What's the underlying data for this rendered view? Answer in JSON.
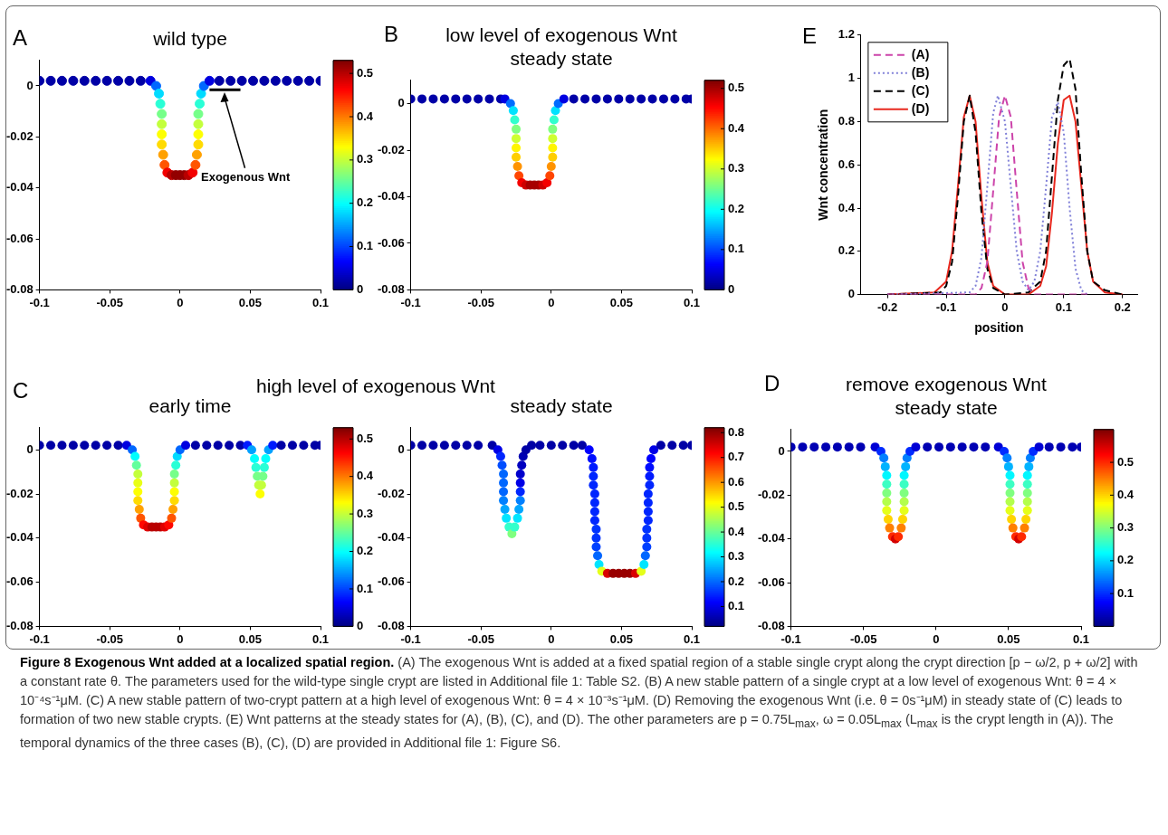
{
  "chart_data": [
    {
      "type": "scatter",
      "title": "wild type",
      "annotations": [
        "A",
        "Exogenous Wnt"
      ],
      "marker": "circle",
      "xlim": [
        -0.1,
        0.1
      ],
      "xticks": [
        -0.1,
        -0.05,
        0,
        0.05,
        0.1
      ],
      "ylim": [
        -0.08,
        0.01
      ],
      "yticks": [
        -0.08,
        -0.06,
        -0.04,
        -0.02,
        0
      ],
      "clim": [
        0,
        0.53
      ],
      "cticks": [
        0,
        0.1,
        0.2,
        0.3,
        0.4,
        0.5
      ],
      "series": [
        {
          "type": "scatter",
          "colors": [
            "#0000a6",
            "#0000a6",
            "#0000a6",
            "#0000a6",
            "#0000a6",
            "#0000a6",
            "#0000a6",
            "#0000a6",
            "#0000a6",
            "#0000a6",
            "#0000e0",
            "#0068ff",
            "#00dbff",
            "#29ffd6",
            "#76ff89",
            "#c3ff3c",
            "#ffff02",
            "#ffdb00",
            "#ffa100",
            "#ff5400",
            "#f30000",
            "#b90000",
            "#930000",
            "#930000",
            "#930000",
            "#b90000",
            "#f30000",
            "#ff5400",
            "#ffa100",
            "#ffdb00",
            "#ffff02",
            "#c3ff3c",
            "#76ff89",
            "#29ffd6",
            "#00dbff",
            "#0068ff",
            "#0000e0",
            "#0000a6",
            "#0000a6",
            "#0000a6",
            "#0000a6",
            "#0000a6",
            "#0000a6",
            "#0000a6",
            "#0000a6",
            "#0000a6",
            "#0000a6"
          ],
          "x": [
            -0.1,
            -0.092,
            -0.084,
            -0.076,
            -0.068,
            -0.06,
            -0.052,
            -0.044,
            -0.036,
            -0.028,
            -0.021,
            -0.017,
            -0.015,
            -0.014,
            -0.013,
            -0.013,
            -0.013,
            -0.013,
            -0.012,
            -0.011,
            -0.009,
            -0.006,
            -0.003,
            0,
            0.003,
            0.006,
            0.009,
            0.011,
            0.012,
            0.013,
            0.013,
            0.013,
            0.013,
            0.014,
            0.015,
            0.017,
            0.021,
            0.028,
            0.036,
            0.044,
            0.052,
            0.06,
            0.068,
            0.076,
            0.084,
            0.092,
            0.1
          ],
          "values": [
            0.002,
            0.002,
            0.002,
            0.002,
            0.002,
            0.002,
            0.002,
            0.002,
            0.002,
            0.002,
            0.002,
            0,
            -0.003,
            -0.007,
            -0.011,
            -0.015,
            -0.019,
            -0.023,
            -0.027,
            -0.031,
            -0.034,
            -0.035,
            -0.035,
            -0.035,
            -0.035,
            -0.035,
            -0.034,
            -0.031,
            -0.027,
            -0.023,
            -0.019,
            -0.015,
            -0.011,
            -0.007,
            -0.003,
            0,
            0.002,
            0.002,
            0.002,
            0.002,
            0.002,
            0.002,
            0.002,
            0.002,
            0.002,
            0.002,
            0.002
          ],
          "cvalues": [
            0.02,
            0.02,
            0.02,
            0.02,
            0.02,
            0.02,
            0.02,
            0.02,
            0.02,
            0.02,
            0.05,
            0.12,
            0.18,
            0.22,
            0.26,
            0.3,
            0.33,
            0.35,
            0.38,
            0.42,
            0.47,
            0.5,
            0.52,
            0.52,
            0.52,
            0.5,
            0.47,
            0.42,
            0.38,
            0.35,
            0.33,
            0.3,
            0.26,
            0.22,
            0.18,
            0.12,
            0.05,
            0.02,
            0.02,
            0.02,
            0.02,
            0.02,
            0.02,
            0.02,
            0.02,
            0.02,
            0.02
          ]
        },
        {
          "type": "line",
          "color": "#000000",
          "marker": "none",
          "x": [
            0.021,
            0.043
          ],
          "values": [
            -0.0015,
            -0.0015
          ]
        }
      ]
    },
    {
      "type": "scatter",
      "title": "low level of exogenous Wnt",
      "subtitle": "steady state",
      "annotations": [
        "B"
      ],
      "marker": "circle",
      "xlim": [
        -0.1,
        0.1
      ],
      "xticks": [
        -0.1,
        -0.05,
        0,
        0.05,
        0.1
      ],
      "ylim": [
        -0.08,
        0.01
      ],
      "yticks": [
        -0.08,
        -0.06,
        -0.04,
        -0.02,
        0
      ],
      "clim": [
        0,
        0.52
      ],
      "cticks": [
        0,
        0.1,
        0.2,
        0.3,
        0.4,
        0.5
      ],
      "x": [
        -0.1,
        -0.092,
        -0.084,
        -0.076,
        -0.068,
        -0.06,
        -0.052,
        -0.044,
        -0.036,
        -0.033,
        -0.029,
        -0.027,
        -0.026,
        -0.025,
        -0.025,
        -0.025,
        -0.025,
        -0.024,
        -0.023,
        -0.021,
        -0.018,
        -0.015,
        -0.012,
        -0.009,
        -0.006,
        -0.003,
        -0.001,
        0,
        0.001,
        0.001,
        0.001,
        0.001,
        0.002,
        0.003,
        0.005,
        0.009,
        0.016,
        0.024,
        0.032,
        0.04,
        0.048,
        0.056,
        0.064,
        0.072,
        0.08,
        0.088,
        0.096,
        0.1
      ],
      "values": [
        0.002,
        0.002,
        0.002,
        0.002,
        0.002,
        0.002,
        0.002,
        0.002,
        0.002,
        0.002,
        0,
        -0.003,
        -0.007,
        -0.011,
        -0.015,
        -0.019,
        -0.023,
        -0.027,
        -0.031,
        -0.034,
        -0.035,
        -0.035,
        -0.035,
        -0.035,
        -0.035,
        -0.034,
        -0.031,
        -0.027,
        -0.023,
        -0.019,
        -0.015,
        -0.011,
        -0.007,
        -0.003,
        0,
        0.002,
        0.002,
        0.002,
        0.002,
        0.002,
        0.002,
        0.002,
        0.002,
        0.002,
        0.002,
        0.002,
        0.002,
        0.002
      ],
      "cvalues": [
        0.02,
        0.02,
        0.02,
        0.02,
        0.02,
        0.02,
        0.02,
        0.02,
        0.02,
        0.05,
        0.12,
        0.18,
        0.22,
        0.26,
        0.3,
        0.33,
        0.35,
        0.38,
        0.42,
        0.46,
        0.48,
        0.5,
        0.5,
        0.5,
        0.48,
        0.46,
        0.42,
        0.38,
        0.35,
        0.33,
        0.3,
        0.26,
        0.22,
        0.18,
        0.12,
        0.05,
        0.02,
        0.02,
        0.02,
        0.02,
        0.02,
        0.02,
        0.02,
        0.02,
        0.02,
        0.02,
        0.02,
        0.02
      ]
    },
    {
      "type": "line",
      "annotations": [
        "E"
      ],
      "xlabel": "position",
      "ylabel": "Wnt concentration",
      "legend": "top left",
      "marker": "none",
      "xlim": [
        -0.245,
        0.225
      ],
      "xticks": [
        -0.2,
        -0.1,
        0,
        0.1,
        0.2
      ],
      "ylim": [
        0,
        1.2
      ],
      "yticks": [
        0,
        0.2,
        0.4,
        0.6,
        0.8,
        1,
        1.2
      ],
      "series": [
        {
          "name": "(A)",
          "color": "#cc44aa",
          "line_style": "dashed",
          "x": [
            -0.2,
            -0.05,
            -0.04,
            -0.03,
            -0.02,
            -0.01,
            0,
            0.01,
            0.02,
            0.03,
            0.04,
            0.05,
            0.14
          ],
          "values": [
            0,
            0,
            0.03,
            0.15,
            0.48,
            0.82,
            0.92,
            0.82,
            0.48,
            0.15,
            0.03,
            0,
            0
          ]
        },
        {
          "name": "(B)",
          "color": "#8080d8",
          "line_style": "dotted",
          "x": [
            -0.2,
            -0.06,
            -0.05,
            -0.04,
            -0.03,
            -0.02,
            -0.012,
            0,
            0.01,
            0.02,
            0.03,
            0.04,
            0.05,
            0.06,
            0.07,
            0.08,
            0.09,
            0.1,
            0.11,
            0.12,
            0.13,
            0.14
          ],
          "values": [
            0,
            0.01,
            0.04,
            0.17,
            0.5,
            0.84,
            0.92,
            0.8,
            0.5,
            0.2,
            0.06,
            0.02,
            0.06,
            0.2,
            0.5,
            0.82,
            0.89,
            0.75,
            0.4,
            0.12,
            0.02,
            0
          ]
        },
        {
          "name": "(C)",
          "color": "#000000",
          "line_style": "dashed",
          "x": [
            -0.2,
            -0.11,
            -0.1,
            -0.09,
            -0.08,
            -0.07,
            -0.06,
            -0.05,
            -0.04,
            -0.03,
            -0.02,
            0,
            0.04,
            0.06,
            0.07,
            0.08,
            0.09,
            0.1,
            0.11,
            0.12,
            0.13,
            0.14,
            0.15,
            0.17,
            0.2
          ],
          "values": [
            0,
            0.01,
            0.04,
            0.15,
            0.45,
            0.8,
            0.92,
            0.75,
            0.38,
            0.12,
            0.03,
            0,
            0.01,
            0.06,
            0.2,
            0.55,
            0.9,
            1.06,
            1.09,
            0.95,
            0.55,
            0.2,
            0.06,
            0.02,
            0
          ]
        },
        {
          "name": "(D)",
          "color": "#e8281e",
          "line_style": "solid",
          "x": [
            -0.2,
            -0.12,
            -0.1,
            -0.09,
            -0.08,
            -0.07,
            -0.06,
            -0.05,
            -0.04,
            -0.03,
            -0.02,
            0,
            0.04,
            0.06,
            0.07,
            0.08,
            0.09,
            0.1,
            0.11,
            0.12,
            0.13,
            0.14,
            0.15,
            0.17,
            0.2
          ],
          "values": [
            0,
            0.01,
            0.06,
            0.2,
            0.5,
            0.82,
            0.92,
            0.8,
            0.45,
            0.15,
            0.04,
            0,
            0,
            0.04,
            0.13,
            0.38,
            0.7,
            0.9,
            0.92,
            0.8,
            0.5,
            0.2,
            0.06,
            0.01,
            0
          ]
        }
      ]
    },
    {
      "type": "scatter",
      "title": "high level of exogenous Wnt",
      "subtitle": "early time",
      "annotations": [
        "C"
      ],
      "marker": "circle",
      "xlim": [
        -0.1,
        0.1
      ],
      "xticks": [
        -0.1,
        -0.05,
        0,
        0.05,
        0.1
      ],
      "ylim": [
        -0.08,
        0.01
      ],
      "yticks": [
        -0.08,
        -0.06,
        -0.04,
        -0.02,
        0
      ],
      "clim": [
        0,
        0.53
      ],
      "cticks": [
        0,
        0.1,
        0.2,
        0.3,
        0.4,
        0.5
      ],
      "x": [
        -0.1,
        -0.092,
        -0.084,
        -0.076,
        -0.068,
        -0.06,
        -0.052,
        -0.044,
        -0.038,
        -0.034,
        -0.032,
        -0.031,
        -0.03,
        -0.03,
        -0.03,
        -0.03,
        -0.029,
        -0.028,
        -0.026,
        -0.023,
        -0.02,
        -0.017,
        -0.014,
        -0.011,
        -0.008,
        -0.006,
        -0.005,
        -0.004,
        -0.004,
        -0.004,
        -0.004,
        -0.003,
        -0.002,
        0,
        0.004,
        0.011,
        0.019,
        0.027,
        0.035,
        0.043,
        0.048,
        0.051,
        0.053,
        0.054,
        0.055,
        0.056,
        0.057,
        0.058,
        0.059,
        0.06,
        0.061,
        0.063,
        0.066,
        0.072,
        0.08,
        0.088,
        0.096,
        0.1
      ],
      "values": [
        0.002,
        0.002,
        0.002,
        0.002,
        0.002,
        0.002,
        0.002,
        0.002,
        0.002,
        0,
        -0.003,
        -0.007,
        -0.011,
        -0.015,
        -0.019,
        -0.023,
        -0.027,
        -0.031,
        -0.034,
        -0.035,
        -0.035,
        -0.035,
        -0.035,
        -0.035,
        -0.034,
        -0.031,
        -0.027,
        -0.023,
        -0.019,
        -0.015,
        -0.011,
        -0.007,
        -0.003,
        0,
        0.002,
        0.002,
        0.002,
        0.002,
        0.002,
        0.002,
        0.002,
        0,
        -0.004,
        -0.008,
        -0.012,
        -0.016,
        -0.02,
        -0.016,
        -0.012,
        -0.008,
        -0.004,
        0,
        0.002,
        0.002,
        0.002,
        0.002,
        0.002,
        0.002
      ],
      "cvalues": [
        0.02,
        0.02,
        0.02,
        0.02,
        0.02,
        0.02,
        0.02,
        0.02,
        0.05,
        0.12,
        0.2,
        0.25,
        0.3,
        0.32,
        0.33,
        0.35,
        0.38,
        0.42,
        0.46,
        0.48,
        0.5,
        0.5,
        0.5,
        0.48,
        0.46,
        0.42,
        0.38,
        0.35,
        0.33,
        0.3,
        0.26,
        0.22,
        0.18,
        0.12,
        0.05,
        0.02,
        0.02,
        0.02,
        0.02,
        0.02,
        0.08,
        0.15,
        0.2,
        0.22,
        0.26,
        0.3,
        0.33,
        0.3,
        0.26,
        0.22,
        0.2,
        0.15,
        0.08,
        0.02,
        0.02,
        0.02,
        0.02,
        0.02
      ]
    },
    {
      "type": "scatter",
      "title": "steady state",
      "marker": "circle",
      "xlim": [
        -0.1,
        0.1
      ],
      "xticks": [
        -0.1,
        -0.05,
        0,
        0.05,
        0.1
      ],
      "ylim": [
        -0.08,
        0.01
      ],
      "yticks": [
        -0.08,
        -0.06,
        -0.04,
        -0.02,
        0
      ],
      "clim": [
        0.02,
        0.82
      ],
      "cticks": [
        0.1,
        0.2,
        0.3,
        0.4,
        0.5,
        0.6,
        0.7,
        0.8
      ],
      "x": [
        -0.1,
        -0.092,
        -0.084,
        -0.076,
        -0.068,
        -0.06,
        -0.052,
        -0.042,
        -0.038,
        -0.036,
        -0.035,
        -0.034,
        -0.034,
        -0.034,
        -0.034,
        -0.033,
        -0.032,
        -0.03,
        -0.028,
        -0.026,
        -0.024,
        -0.023,
        -0.022,
        -0.022,
        -0.022,
        -0.022,
        -0.021,
        -0.02,
        -0.018,
        -0.014,
        -0.008,
        0,
        0.008,
        0.016,
        0.022,
        0.027,
        0.029,
        0.03,
        0.03,
        0.03,
        0.031,
        0.031,
        0.031,
        0.031,
        0.032,
        0.032,
        0.032,
        0.033,
        0.034,
        0.036,
        0.04,
        0.044,
        0.048,
        0.052,
        0.056,
        0.06,
        0.064,
        0.066,
        0.067,
        0.068,
        0.068,
        0.068,
        0.069,
        0.069,
        0.069,
        0.069,
        0.07,
        0.07,
        0.07,
        0.071,
        0.073,
        0.078,
        0.086,
        0.094,
        0.1
      ],
      "values": [
        0.002,
        0.002,
        0.002,
        0.002,
        0.002,
        0.002,
        0.002,
        0.002,
        0,
        -0.003,
        -0.007,
        -0.011,
        -0.015,
        -0.019,
        -0.023,
        -0.027,
        -0.031,
        -0.035,
        -0.038,
        -0.035,
        -0.031,
        -0.027,
        -0.023,
        -0.019,
        -0.015,
        -0.011,
        -0.007,
        -0.003,
        0,
        0.002,
        0.002,
        0.002,
        0.002,
        0.002,
        0.002,
        0,
        -0.004,
        -0.008,
        -0.012,
        -0.016,
        -0.02,
        -0.024,
        -0.028,
        -0.032,
        -0.036,
        -0.04,
        -0.044,
        -0.048,
        -0.052,
        -0.055,
        -0.056,
        -0.056,
        -0.056,
        -0.056,
        -0.056,
        -0.056,
        -0.055,
        -0.052,
        -0.048,
        -0.044,
        -0.04,
        -0.036,
        -0.032,
        -0.028,
        -0.024,
        -0.02,
        -0.016,
        -0.012,
        -0.008,
        -0.004,
        0,
        0.002,
        0.002,
        0.002,
        0.002
      ],
      "cvalues": [
        0.05,
        0.05,
        0.05,
        0.05,
        0.05,
        0.05,
        0.05,
        0.05,
        0.1,
        0.15,
        0.18,
        0.2,
        0.2,
        0.2,
        0.22,
        0.25,
        0.3,
        0.36,
        0.42,
        0.36,
        0.3,
        0.25,
        0.22,
        0.15,
        0.1,
        0.08,
        0.07,
        0.06,
        0.05,
        0.05,
        0.05,
        0.05,
        0.05,
        0.05,
        0.05,
        0.12,
        0.13,
        0.14,
        0.15,
        0.15,
        0.15,
        0.15,
        0.15,
        0.15,
        0.16,
        0.16,
        0.17,
        0.2,
        0.3,
        0.5,
        0.75,
        0.8,
        0.8,
        0.8,
        0.8,
        0.75,
        0.5,
        0.3,
        0.2,
        0.17,
        0.16,
        0.16,
        0.15,
        0.15,
        0.15,
        0.15,
        0.15,
        0.14,
        0.13,
        0.12,
        0.1,
        0.05,
        0.05,
        0.05,
        0.05
      ]
    },
    {
      "type": "scatter",
      "title": "remove exogenous Wnt",
      "subtitle": "steady state",
      "annotations": [
        "D",
        "Figure 8 Exogenous Wnt added at a localized spatial region.",
        "(A) The exogenous Wnt is added at a fixed spatial region of a stable single crypt along the crypt direction [p − ω/2, p + ω/2] with a constant rate θ. The parameters used for the wild-type single crypt are listed in Additional file 1: Table S2. (B) A new stable pattern of a single crypt at a low level of exogenous Wnt: θ = 4 × 10⁻⁴s⁻¹μM. (C) A new stable pattern of two-crypt pattern at a high level of exogenous Wnt: θ = 4 × 10⁻³s⁻¹μM. (D) Removing the exogenous Wnt (i.e. θ = 0s⁻¹μM) in steady state of (C) leads to formation of two new stable crypts. (E) Wnt patterns at the steady states for (A), (B), (C), and (D). The other parameters are p = 0.75L$_{max}$, ω = 0.05L$_{max}$ (L$_{max}$ is the crypt length in (A)). The temporal dynamics of the three cases (B), (C), (D) are provided in Additional file 1: Figure S6."
      ],
      "marker": "circle",
      "xlim": [
        -0.1,
        0.1
      ],
      "xticks": [
        -0.1,
        -0.05,
        0,
        0.05,
        0.1
      ],
      "ylim": [
        -0.08,
        0.01
      ],
      "yticks": [
        -0.08,
        -0.06,
        -0.04,
        -0.02,
        0
      ],
      "clim": [
        0,
        0.6
      ],
      "cticks": [
        0.1,
        0.2,
        0.3,
        0.4,
        0.5
      ],
      "x": [
        -0.1,
        -0.092,
        -0.084,
        -0.076,
        -0.068,
        -0.06,
        -0.052,
        -0.042,
        -0.038,
        -0.036,
        -0.035,
        -0.034,
        -0.034,
        -0.034,
        -0.034,
        -0.034,
        -0.033,
        -0.032,
        -0.03,
        -0.028,
        -0.026,
        -0.024,
        -0.023,
        -0.022,
        -0.022,
        -0.022,
        -0.022,
        -0.022,
        -0.021,
        -0.02,
        -0.018,
        -0.014,
        -0.006,
        0.002,
        0.01,
        0.018,
        0.026,
        0.034,
        0.043,
        0.047,
        0.049,
        0.05,
        0.051,
        0.051,
        0.051,
        0.051,
        0.051,
        0.052,
        0.053,
        0.055,
        0.057,
        0.059,
        0.061,
        0.062,
        0.063,
        0.063,
        0.063,
        0.063,
        0.063,
        0.064,
        0.065,
        0.067,
        0.071,
        0.078,
        0.086,
        0.094,
        0.1
      ],
      "values": [
        0.002,
        0.002,
        0.002,
        0.002,
        0.002,
        0.002,
        0.002,
        0.002,
        0,
        -0.003,
        -0.007,
        -0.011,
        -0.015,
        -0.019,
        -0.023,
        -0.027,
        -0.031,
        -0.035,
        -0.039,
        -0.04,
        -0.039,
        -0.035,
        -0.031,
        -0.027,
        -0.023,
        -0.019,
        -0.015,
        -0.011,
        -0.007,
        -0.003,
        0,
        0.002,
        0.002,
        0.002,
        0.002,
        0.002,
        0.002,
        0.002,
        0.002,
        0,
        -0.003,
        -0.007,
        -0.011,
        -0.015,
        -0.019,
        -0.023,
        -0.027,
        -0.031,
        -0.035,
        -0.039,
        -0.04,
        -0.039,
        -0.035,
        -0.031,
        -0.027,
        -0.023,
        -0.019,
        -0.015,
        -0.011,
        -0.007,
        -0.003,
        0,
        0.002,
        0.002,
        0.002,
        0.002,
        0.002
      ],
      "cvalues": [
        0.03,
        0.03,
        0.03,
        0.03,
        0.03,
        0.03,
        0.03,
        0.05,
        0.1,
        0.15,
        0.18,
        0.22,
        0.26,
        0.3,
        0.33,
        0.36,
        0.4,
        0.45,
        0.5,
        0.55,
        0.5,
        0.45,
        0.4,
        0.36,
        0.33,
        0.3,
        0.26,
        0.22,
        0.18,
        0.15,
        0.1,
        0.05,
        0.03,
        0.03,
        0.03,
        0.03,
        0.03,
        0.03,
        0.05,
        0.1,
        0.15,
        0.18,
        0.22,
        0.26,
        0.3,
        0.33,
        0.36,
        0.4,
        0.45,
        0.5,
        0.55,
        0.5,
        0.45,
        0.4,
        0.36,
        0.33,
        0.3,
        0.26,
        0.22,
        0.18,
        0.15,
        0.1,
        0.05,
        0.03,
        0.03,
        0.03,
        0.03
      ]
    }
  ]
}
